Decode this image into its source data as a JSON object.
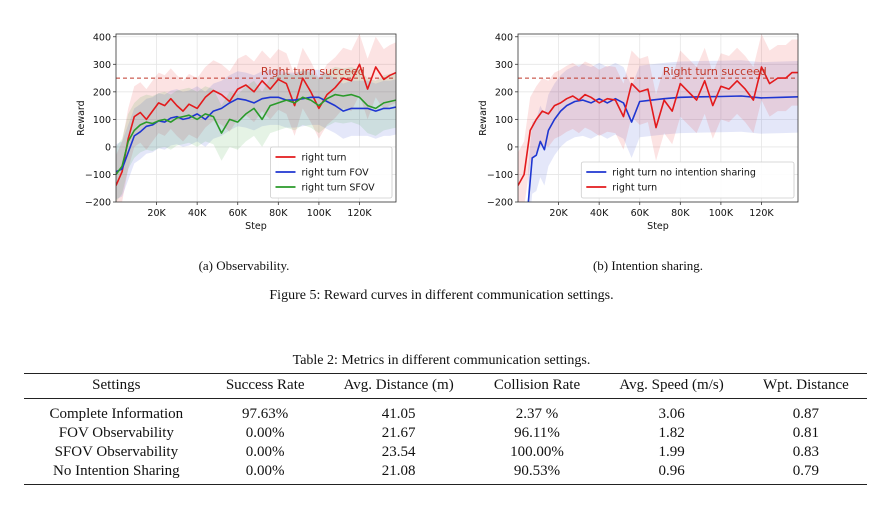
{
  "figure": {
    "caption": "Figure 5: Reward curves in different communication settings.",
    "subcaption_a": "(a) Observability.",
    "subcaption_b": "(b) Intention sharing."
  },
  "chart_data": [
    {
      "type": "line",
      "id": "plot-a",
      "title": "",
      "xlabel": "Step",
      "ylabel": "Reward",
      "xlim": [
        0,
        138000
      ],
      "ylim": [
        -200,
        410
      ],
      "xticks": [
        20000,
        40000,
        60000,
        80000,
        100000,
        120000
      ],
      "xtick_labels": [
        "20K",
        "40K",
        "60K",
        "80K",
        "100K",
        "120K"
      ],
      "yticks": [
        -200,
        -100,
        0,
        100,
        200,
        300,
        400
      ],
      "ytick_labels": [
        "−200",
        "−100",
        "0",
        "100",
        "200",
        "300",
        "400"
      ],
      "grid": true,
      "legend_position": "lower-right",
      "threshold": {
        "value": 250,
        "label": "Right turn succeed",
        "color": "#c0392b"
      },
      "series": [
        {
          "name": "right turn",
          "color": "#e31a1c",
          "band": 110,
          "x": [
            0,
            3000,
            6000,
            9000,
            12000,
            15000,
            18000,
            21000,
            24000,
            27000,
            30000,
            33000,
            36000,
            40000,
            44000,
            48000,
            52000,
            56000,
            60000,
            64000,
            68000,
            72000,
            76000,
            80000,
            84000,
            88000,
            92000,
            96000,
            100000,
            104000,
            108000,
            112000,
            116000,
            120000,
            124000,
            128000,
            132000,
            135000,
            138000
          ],
          "y": [
            -140,
            -90,
            30,
            110,
            125,
            100,
            130,
            160,
            150,
            175,
            150,
            130,
            155,
            140,
            180,
            205,
            190,
            165,
            210,
            225,
            200,
            240,
            210,
            245,
            230,
            150,
            250,
            200,
            140,
            190,
            215,
            250,
            240,
            300,
            210,
            290,
            245,
            260,
            270
          ]
        },
        {
          "name": "right turn FOV",
          "color": "#1f36d1",
          "band": 100,
          "x": [
            0,
            3000,
            6000,
            9000,
            12000,
            15000,
            18000,
            21000,
            24000,
            27000,
            30000,
            33000,
            36000,
            40000,
            44000,
            48000,
            52000,
            56000,
            60000,
            64000,
            68000,
            72000,
            76000,
            80000,
            84000,
            88000,
            92000,
            96000,
            100000,
            104000,
            108000,
            112000,
            116000,
            120000,
            124000,
            128000,
            132000,
            135000,
            138000
          ],
          "y": [
            -90,
            -80,
            -20,
            40,
            55,
            75,
            80,
            95,
            90,
            105,
            110,
            100,
            105,
            120,
            100,
            130,
            140,
            160,
            175,
            170,
            160,
            175,
            180,
            180,
            170,
            170,
            175,
            180,
            180,
            165,
            150,
            130,
            140,
            140,
            140,
            130,
            140,
            140,
            145
          ]
        },
        {
          "name": "right turn SFOV",
          "color": "#2a9a2a",
          "band": 100,
          "x": [
            0,
            3000,
            6000,
            9000,
            12000,
            15000,
            18000,
            21000,
            24000,
            27000,
            30000,
            33000,
            36000,
            40000,
            44000,
            48000,
            52000,
            56000,
            60000,
            64000,
            68000,
            72000,
            76000,
            80000,
            84000,
            88000,
            92000,
            96000,
            100000,
            104000,
            108000,
            112000,
            116000,
            120000,
            124000,
            128000,
            132000,
            135000,
            138000
          ],
          "y": [
            -100,
            -70,
            20,
            60,
            80,
            90,
            85,
            95,
            100,
            90,
            105,
            110,
            115,
            100,
            120,
            110,
            50,
            100,
            90,
            120,
            140,
            100,
            150,
            160,
            170,
            160,
            180,
            170,
            150,
            175,
            190,
            185,
            190,
            180,
            150,
            140,
            160,
            165,
            170
          ]
        }
      ]
    },
    {
      "type": "line",
      "id": "plot-b",
      "title": "",
      "xlabel": "Step",
      "ylabel": "Reward",
      "xlim": [
        0,
        138000
      ],
      "ylim": [
        -200,
        410
      ],
      "xticks": [
        20000,
        40000,
        60000,
        80000,
        100000,
        120000
      ],
      "xtick_labels": [
        "20K",
        "40K",
        "60K",
        "80K",
        "100K",
        "120K"
      ],
      "yticks": [
        -200,
        -100,
        0,
        100,
        200,
        300,
        400
      ],
      "ytick_labels": [
        "−200",
        "−100",
        "0",
        "100",
        "200",
        "300",
        "400"
      ],
      "grid": true,
      "legend_position": "lower-right",
      "threshold": {
        "value": 250,
        "label": "Right turn succeed",
        "color": "#c0392b"
      },
      "series": [
        {
          "name": "right turn no intention sharing",
          "color": "#1f36d1",
          "band": 130,
          "x": [
            5000,
            7000,
            9000,
            11000,
            13000,
            15000,
            18000,
            21000,
            24000,
            28000,
            32000,
            36000,
            40000,
            44000,
            48000,
            52000,
            56000,
            60000,
            66000,
            72000,
            80000,
            90000,
            100000,
            110000,
            120000,
            130000,
            138000
          ],
          "y": [
            -210,
            -40,
            -30,
            20,
            -10,
            60,
            100,
            130,
            150,
            165,
            170,
            160,
            175,
            160,
            175,
            160,
            90,
            165,
            170,
            175,
            180,
            182,
            183,
            185,
            178,
            180,
            182
          ]
        },
        {
          "name": "right turn",
          "color": "#e31a1c",
          "band": 120,
          "x": [
            0,
            3000,
            6000,
            9000,
            12000,
            15000,
            18000,
            21000,
            24000,
            27000,
            30000,
            33000,
            36000,
            40000,
            44000,
            48000,
            52000,
            56000,
            60000,
            64000,
            68000,
            72000,
            76000,
            80000,
            84000,
            88000,
            92000,
            96000,
            100000,
            104000,
            108000,
            112000,
            116000,
            120000,
            124000,
            128000,
            132000,
            135000,
            138000
          ],
          "y": [
            -140,
            -100,
            60,
            100,
            130,
            120,
            150,
            160,
            175,
            185,
            170,
            190,
            180,
            160,
            175,
            170,
            110,
            230,
            200,
            210,
            70,
            170,
            130,
            230,
            200,
            170,
            240,
            150,
            220,
            210,
            240,
            210,
            170,
            290,
            230,
            250,
            250,
            270,
            270
          ]
        }
      ]
    }
  ],
  "table": {
    "caption": "Table 2: Metrics in different communication settings.",
    "headers": [
      "Settings",
      "Success Rate",
      "Avg. Distance (m)",
      "Collision Rate",
      "Avg. Speed (m/s)",
      "Wpt. Distance"
    ],
    "rows": [
      [
        "Complete Information",
        "97.63%",
        "41.05",
        "2.37 %",
        "3.06",
        "0.87"
      ],
      [
        "FOV Observability",
        "0.00%",
        "21.67",
        "96.11%",
        "1.82",
        "0.81"
      ],
      [
        "SFOV Observability",
        "0.00%",
        "23.54",
        "100.00%",
        "1.99",
        "0.83"
      ],
      [
        "No Intention Sharing",
        "0.00%",
        "21.08",
        "90.53%",
        "0.96",
        "0.79"
      ]
    ]
  }
}
